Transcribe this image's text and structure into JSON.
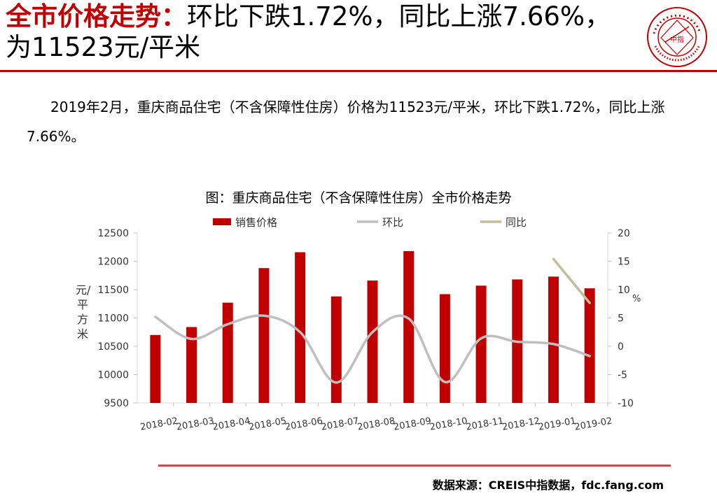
{
  "header": {
    "title_highlight": "全市价格走势：",
    "title_rest": "环比下跌1.72%，同比上涨7.66%，为11523元/平米",
    "logo_text": "中指"
  },
  "paragraph": "2019年2月，重庆商品住宅（不含保障性住房）价格为11523元/平米，环比下跌1.72%，同比上涨7.66%。",
  "chart_title": "图：重庆商品住宅（不含保障性住房）全市价格走势",
  "source": "数据来源：CREIS中指数据，fdc.fang.com",
  "chart_data": {
    "type": "bar",
    "categories": [
      "2018-02",
      "2018-03",
      "2018-04",
      "2018-05",
      "2018-06",
      "2018-07",
      "2018-08",
      "2018-09",
      "2018-10",
      "2018-11",
      "2018-12",
      "2019-01",
      "2019-02"
    ],
    "ylabel": "元/平方米",
    "y2label": "%",
    "ylim": [
      9500,
      12500
    ],
    "y2lim": [
      -10,
      20
    ],
    "yticks": [
      9500,
      10000,
      10500,
      11000,
      11500,
      12000,
      12500
    ],
    "y2ticks": [
      -10,
      -5,
      0,
      5,
      10,
      15,
      20
    ],
    "series": [
      {
        "name": "销售价格",
        "kind": "bar",
        "color": "#c00000",
        "values": [
          10700,
          10840,
          11270,
          11880,
          12160,
          11380,
          11660,
          12180,
          11420,
          11570,
          11680,
          11730,
          11523
        ]
      },
      {
        "name": "环比",
        "kind": "line",
        "axis": "right",
        "color": "#bfbfbf",
        "values": [
          5.2,
          1.3,
          3.9,
          5.4,
          2.5,
          -6.4,
          2.5,
          4.9,
          -6.3,
          1.4,
          0.8,
          0.4,
          -1.72
        ]
      },
      {
        "name": "同比",
        "kind": "line",
        "axis": "right",
        "color": "#c4bd97",
        "values": [
          null,
          null,
          null,
          null,
          null,
          null,
          null,
          null,
          null,
          null,
          null,
          15.4,
          7.66
        ]
      }
    ],
    "legend_position": "top"
  }
}
